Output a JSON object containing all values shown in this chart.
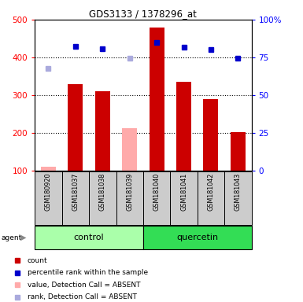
{
  "title": "GDS3133 / 1378296_at",
  "samples": [
    "GSM180920",
    "GSM181037",
    "GSM181038",
    "GSM181039",
    "GSM181040",
    "GSM181041",
    "GSM181042",
    "GSM181043"
  ],
  "bar_values": [
    110,
    330,
    310,
    213,
    480,
    335,
    290,
    202
  ],
  "bar_absent": [
    true,
    false,
    false,
    true,
    false,
    false,
    false,
    false
  ],
  "rank_values": [
    370,
    430,
    422,
    398,
    440,
    428,
    420,
    398
  ],
  "rank_absent": [
    true,
    false,
    false,
    true,
    false,
    false,
    false,
    false
  ],
  "groups": [
    {
      "label": "control",
      "start": 0,
      "end": 4,
      "color": "#aaffaa"
    },
    {
      "label": "quercetin",
      "start": 4,
      "end": 8,
      "color": "#33dd55"
    }
  ],
  "ylim_left": [
    100,
    500
  ],
  "ylim_right": [
    0,
    100
  ],
  "yticks_left": [
    100,
    200,
    300,
    400,
    500
  ],
  "yticks_right": [
    0,
    25,
    50,
    75,
    100
  ],
  "yticklabels_right": [
    "0",
    "25",
    "50",
    "75",
    "100%"
  ],
  "bar_color_present": "#cc0000",
  "bar_color_absent": "#ffaaaa",
  "rank_color_present": "#0000cc",
  "rank_color_absent": "#aaaadd",
  "bar_width": 0.55,
  "legend_items": [
    {
      "color": "#cc0000",
      "label": "count",
      "marker": "s"
    },
    {
      "color": "#0000cc",
      "label": "percentile rank within the sample",
      "marker": "s"
    },
    {
      "color": "#ffaaaa",
      "label": "value, Detection Call = ABSENT",
      "marker": "s"
    },
    {
      "color": "#aaaadd",
      "label": "rank, Detection Call = ABSENT",
      "marker": "s"
    }
  ],
  "grid_vals": [
    200,
    300,
    400
  ],
  "sample_box_color": "#cccccc",
  "figwidth": 3.85,
  "figheight": 3.84,
  "dpi": 100
}
